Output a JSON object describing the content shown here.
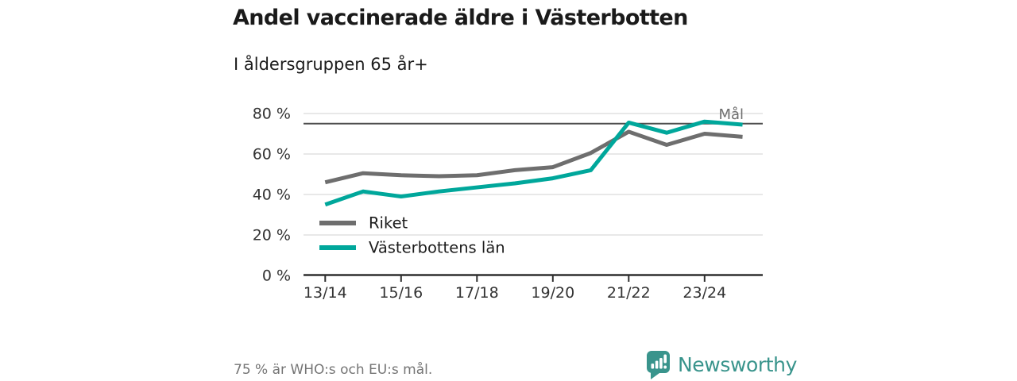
{
  "header": {
    "title": "Andel vaccinerade äldre i Västerbotten",
    "subtitle": "I åldersgruppen 65 år+"
  },
  "chart_data": {
    "type": "line",
    "title": "Andel vaccinerade äldre i Västerbotten",
    "subtitle": "I åldersgruppen 65 år+",
    "categories": [
      "13/14",
      "14/15",
      "15/16",
      "16/17",
      "17/18",
      "18/19",
      "19/20",
      "20/21",
      "21/22",
      "22/23",
      "23/24",
      "24/25"
    ],
    "x_tick_labels": [
      "13/14",
      "15/16",
      "17/18",
      "19/20",
      "21/22",
      "23/24"
    ],
    "series": [
      {
        "name": "Riket",
        "color": "#6e6e6e",
        "values": [
          46,
          50.5,
          49.5,
          49,
          49.5,
          52,
          53.5,
          60.5,
          71,
          64.5,
          70,
          68.5
        ]
      },
      {
        "name": "Västerbottens län",
        "color": "#00a79b",
        "values": [
          35,
          41.5,
          39,
          41.5,
          43.5,
          45.5,
          48,
          52,
          75.5,
          70.5,
          76,
          74.5
        ]
      }
    ],
    "goal_line": {
      "label": "Mål",
      "value": 75
    },
    "unit": "%",
    "ylim": [
      0,
      80
    ],
    "y_ticks": [
      0,
      20,
      40,
      60,
      80
    ],
    "y_tick_suffix": " %",
    "grid": true,
    "legend_position": "inside-bottom-left"
  },
  "footer": {
    "note": "75 % är WHO:s och EU:s mål.",
    "brand": "Newsworthy"
  },
  "colors": {
    "accent_teal": "#00a79b",
    "series_gray": "#6e6e6e",
    "goal_line": "#4d4d4d",
    "goal_label": "#6e6e6e",
    "gridline": "#d9d9d9",
    "axis": "#2e2e2e",
    "axis_text": "#333333",
    "legend_text": "#1c1c1c",
    "title_text": "#1a1a1a",
    "footer_text": "#757575",
    "brand": "#39948c"
  }
}
